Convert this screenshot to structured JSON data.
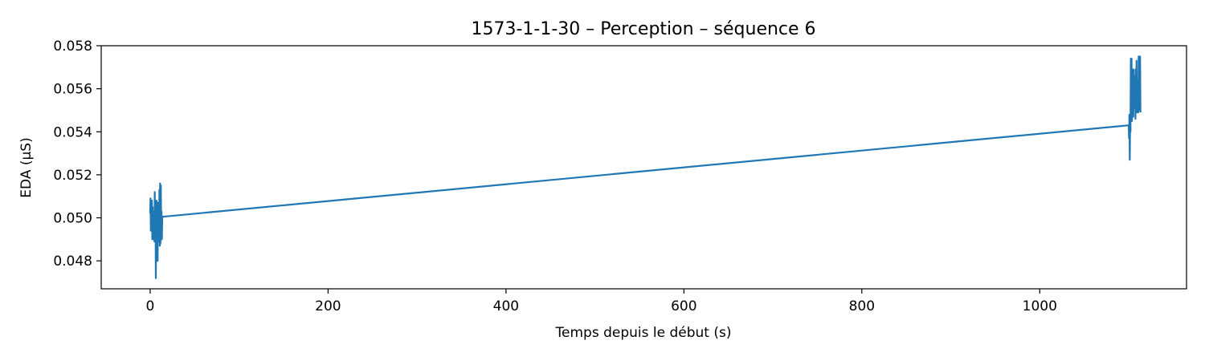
{
  "chart_data": {
    "type": "line",
    "title": "1573-1-1-30 – Perception – séquence 6",
    "xlabel": "Temps depuis le début (s)",
    "ylabel": "EDA (µS)",
    "xlim": [
      -55,
      1165
    ],
    "ylim": [
      0.0467,
      0.058
    ],
    "x_ticks": [
      0,
      200,
      400,
      600,
      800,
      1000
    ],
    "x_tick_labels": [
      "0",
      "200",
      "400",
      "600",
      "800",
      "1000"
    ],
    "y_ticks": [
      0.048,
      0.05,
      0.052,
      0.054,
      0.056,
      0.058
    ],
    "y_tick_labels": [
      "0.048",
      "0.050",
      "0.052",
      "0.054",
      "0.056",
      "0.058"
    ],
    "grid": false,
    "series": [
      {
        "color": "#1f77b4",
        "x": [
          0.0,
          0.4,
          0.8,
          1.2,
          1.6,
          2.0,
          2.4,
          2.8,
          3.2,
          3.6,
          4.0,
          4.4,
          4.8,
          5.2,
          5.6,
          6.0,
          6.4,
          6.8,
          7.2,
          7.6,
          8.0,
          8.4,
          8.8,
          9.2,
          9.6,
          10.0,
          10.4,
          10.8,
          11.2,
          11.6,
          12.0,
          12.4,
          12.8,
          13.2,
          13.6,
          14.0,
          1100.0,
          1100.4,
          1100.8,
          1101.2,
          1101.6,
          1102.0,
          1102.4,
          1102.8,
          1103.2,
          1103.6,
          1104.0,
          1104.4,
          1104.8,
          1105.2,
          1105.6,
          1106.0,
          1106.4,
          1106.8,
          1107.2,
          1107.6,
          1108.0,
          1108.4,
          1108.8,
          1109.2,
          1109.6,
          1110.0,
          1110.4,
          1110.8,
          1111.2,
          1111.6,
          1112.0,
          1112.4,
          1112.8,
          1113.2
        ],
        "y": [
          0.0502,
          0.0509,
          0.0494,
          0.0506,
          0.0497,
          0.0508,
          0.049,
          0.0505,
          0.0495,
          0.0503,
          0.049,
          0.05,
          0.0489,
          0.0512,
          0.0493,
          0.0506,
          0.0472,
          0.0498,
          0.0508,
          0.0487,
          0.0505,
          0.048,
          0.0507,
          0.0491,
          0.0502,
          0.0489,
          0.0513,
          0.0487,
          0.0516,
          0.0488,
          0.0515,
          0.0496,
          0.0503,
          0.049,
          0.05,
          0.05005,
          0.0543,
          0.0537,
          0.0548,
          0.0527,
          0.0546,
          0.054,
          0.0574,
          0.0549,
          0.0574,
          0.0545,
          0.0569,
          0.0552,
          0.0566,
          0.0547,
          0.0569,
          0.0554,
          0.0564,
          0.0551,
          0.0566,
          0.0546,
          0.0569,
          0.0552,
          0.0573,
          0.0549,
          0.056,
          0.0553,
          0.0564,
          0.0549,
          0.0575,
          0.0552,
          0.0569,
          0.055,
          0.0575,
          0.0549
        ]
      }
    ]
  }
}
